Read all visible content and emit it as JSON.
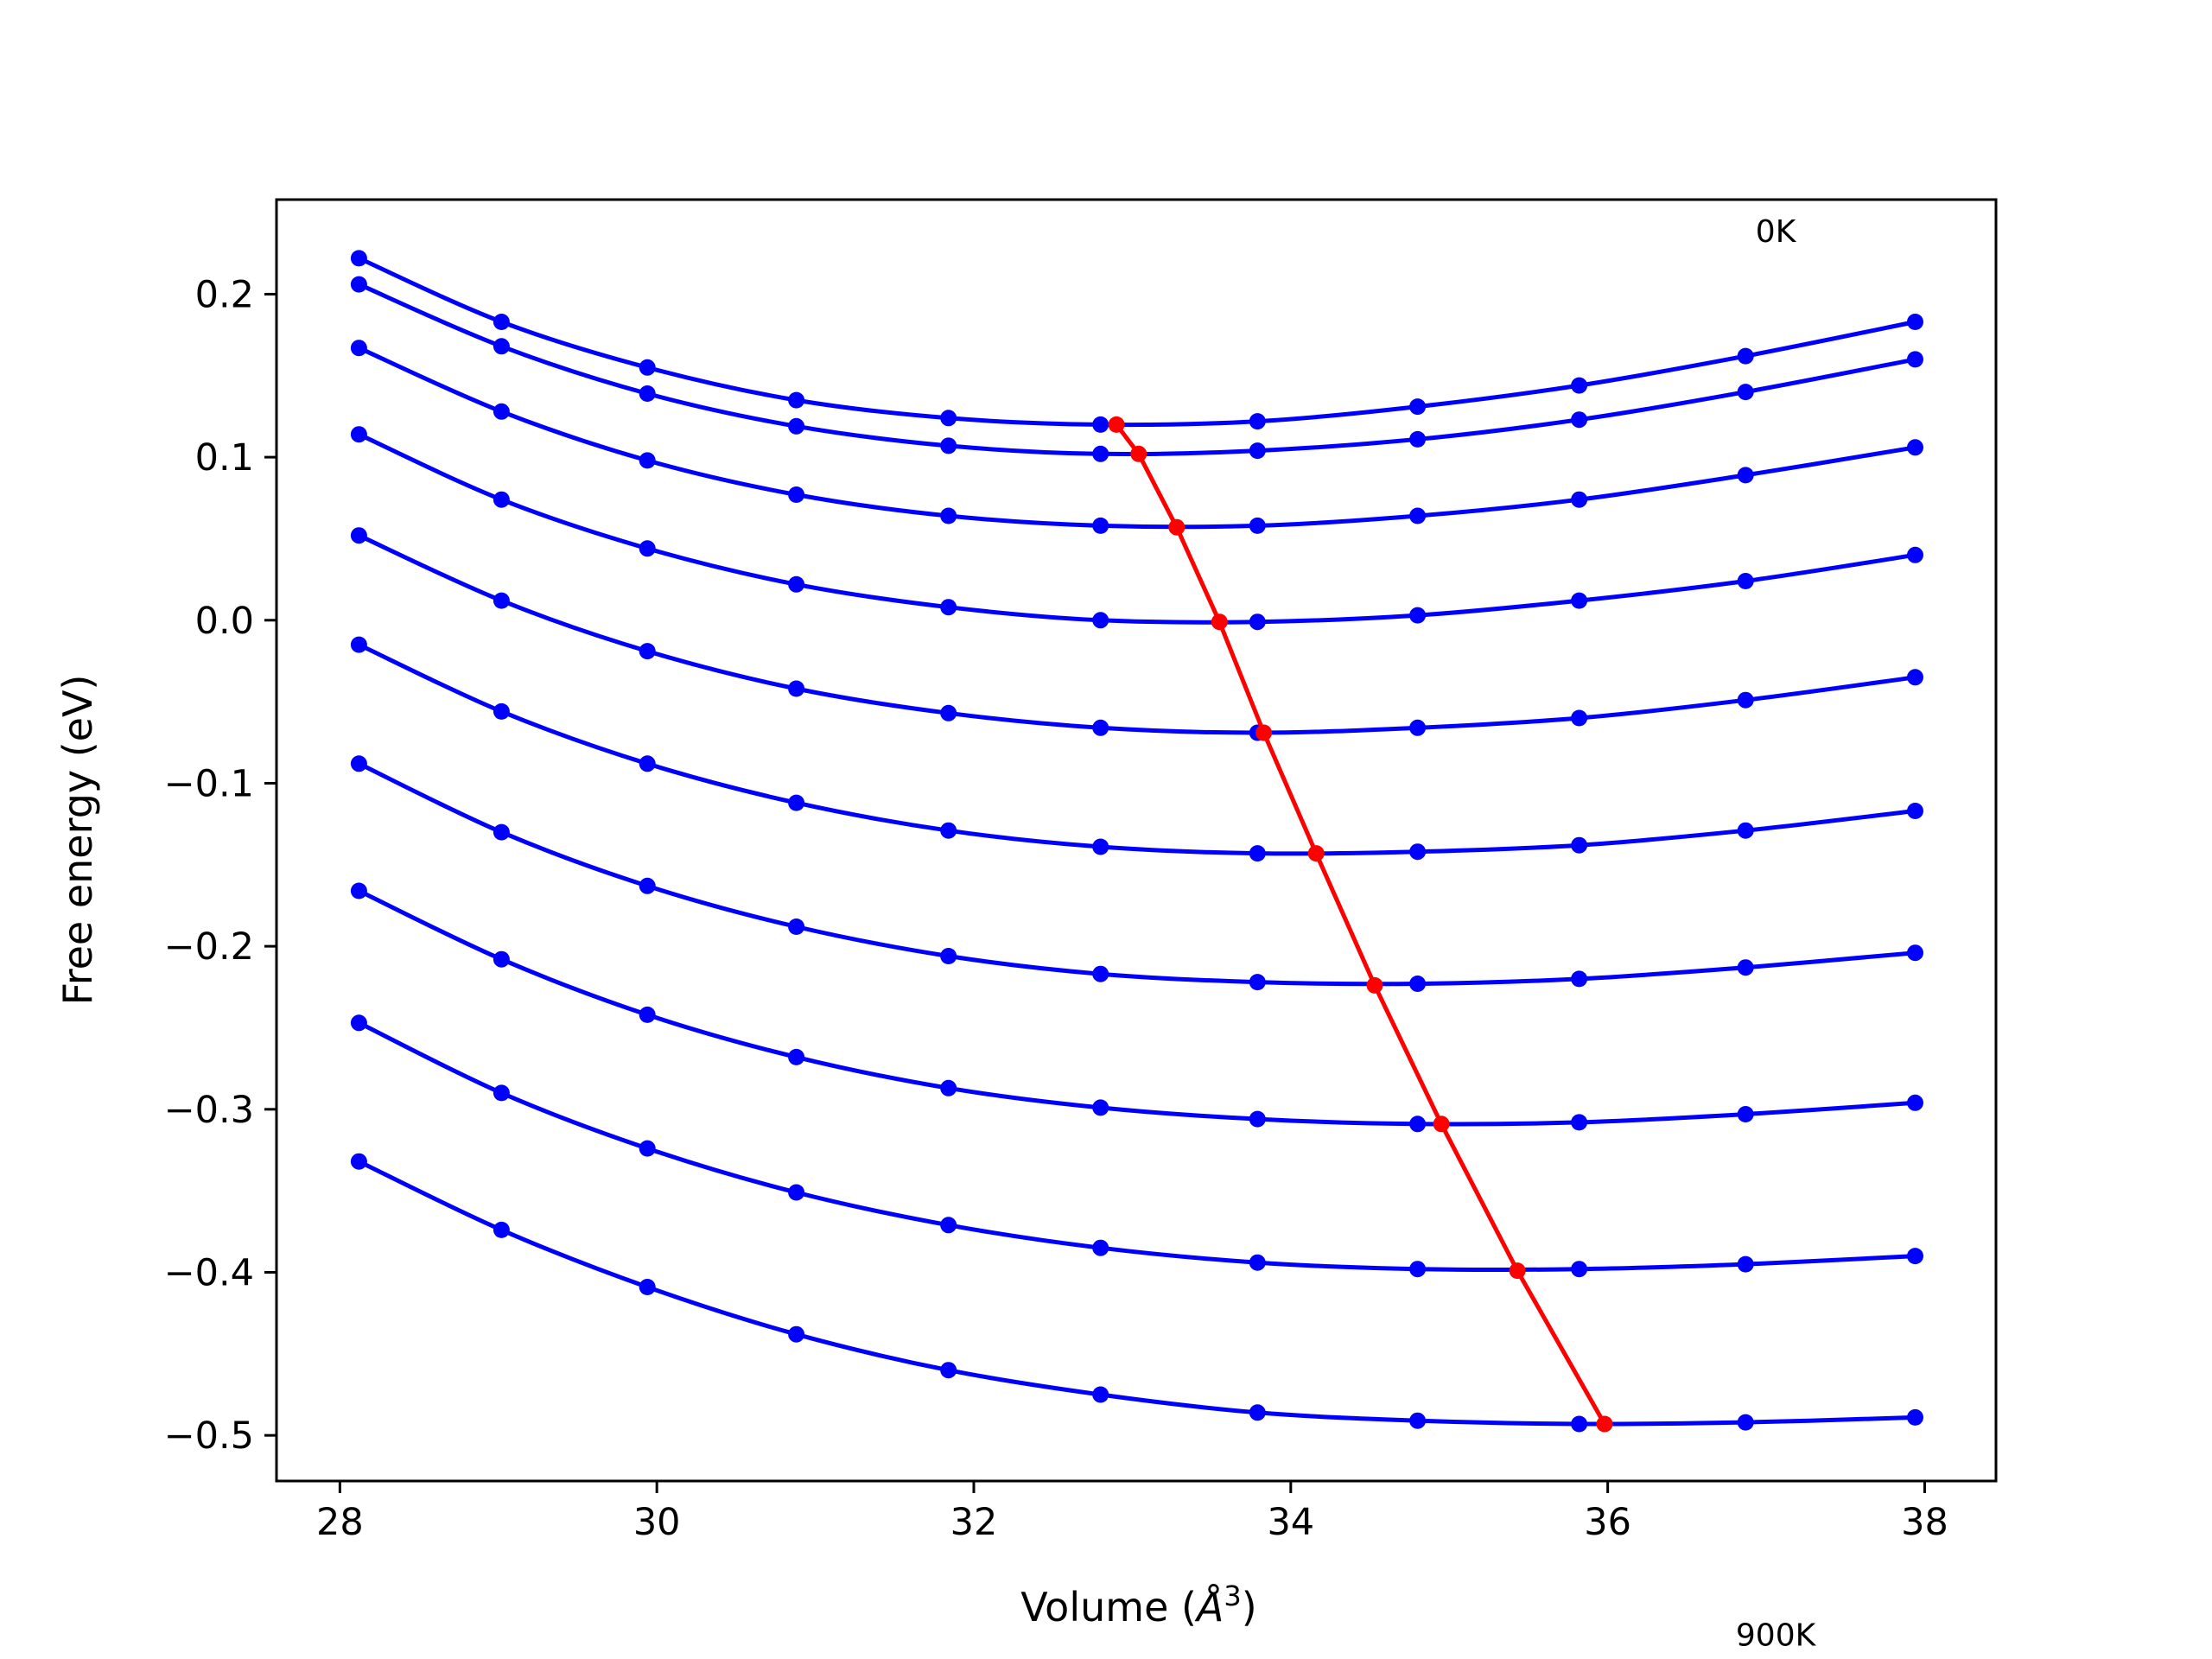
{
  "chart_data": {
    "type": "line",
    "title": "",
    "xlabel": "Volume ($\\AA^3$)",
    "xlabel_display": {
      "main": "Volume (",
      "symbol": "Å",
      "sup": "3",
      "close": ")"
    },
    "ylabel": "Free energy (eV)",
    "xlim": [
      27.6,
      38.45
    ],
    "ylim": [
      -0.528,
      0.258
    ],
    "x_ticks": [
      28,
      30,
      32,
      34,
      36,
      38
    ],
    "x_tick_labels": [
      "28",
      "30",
      "32",
      "34",
      "36",
      "38"
    ],
    "y_ticks": [
      0.2,
      0.1,
      0.0,
      -0.1,
      -0.2,
      -0.3,
      -0.4,
      -0.5
    ],
    "y_tick_labels": [
      "0.2",
      "0.1",
      "0.0",
      "−0.1",
      "−0.2",
      "−0.3",
      "−0.4",
      "−0.5"
    ],
    "grid": false,
    "legend": "none",
    "x": [
      28.12,
      29.02,
      29.94,
      30.88,
      31.84,
      32.8,
      33.79,
      34.8,
      35.82,
      36.87,
      37.94
    ],
    "series": [
      {
        "color": "#0000ff",
        "values": [
          0.222,
          0.183,
          0.155,
          0.135,
          0.124,
          0.12,
          0.122,
          0.131,
          0.144,
          0.162,
          0.183
        ]
      },
      {
        "color": "#0000ff",
        "values": [
          0.206,
          0.168,
          0.139,
          0.119,
          0.107,
          0.102,
          0.104,
          0.111,
          0.123,
          0.14,
          0.16
        ]
      },
      {
        "color": "#0000ff",
        "values": [
          0.167,
          0.128,
          0.098,
          0.077,
          0.064,
          0.058,
          0.058,
          0.064,
          0.074,
          0.089,
          0.106
        ]
      },
      {
        "color": "#0000ff",
        "values": [
          0.114,
          0.074,
          0.044,
          0.022,
          0.008,
          0.0,
          -0.001,
          0.003,
          0.012,
          0.024,
          0.04
        ]
      },
      {
        "color": "#0000ff",
        "values": [
          0.052,
          0.012,
          -0.019,
          -0.042,
          -0.057,
          -0.066,
          -0.069,
          -0.066,
          -0.06,
          -0.049,
          -0.035
        ]
      },
      {
        "color": "#0000ff",
        "values": [
          -0.015,
          -0.056,
          -0.088,
          -0.112,
          -0.129,
          -0.139,
          -0.143,
          -0.142,
          -0.138,
          -0.129,
          -0.117
        ]
      },
      {
        "color": "#0000ff",
        "values": [
          -0.088,
          -0.13,
          -0.163,
          -0.188,
          -0.206,
          -0.217,
          -0.222,
          -0.223,
          -0.22,
          -0.213,
          -0.204
        ]
      },
      {
        "color": "#0000ff",
        "values": [
          -0.166,
          -0.208,
          -0.242,
          -0.268,
          -0.287,
          -0.299,
          -0.306,
          -0.309,
          -0.308,
          -0.303,
          -0.296
        ]
      },
      {
        "color": "#0000ff",
        "values": [
          -0.247,
          -0.29,
          -0.324,
          -0.351,
          -0.371,
          -0.385,
          -0.394,
          -0.398,
          -0.398,
          -0.395,
          -0.39
        ]
      },
      {
        "color": "#0000ff",
        "values": [
          -0.332,
          -0.374,
          -0.409,
          -0.438,
          -0.46,
          -0.475,
          -0.486,
          -0.491,
          -0.493,
          -0.492,
          -0.489
        ]
      }
    ],
    "minimum_curve": {
      "color": "#ff0000",
      "x": [
        32.9,
        33.04,
        33.28,
        33.55,
        33.83,
        34.16,
        34.53,
        34.95,
        35.43,
        35.98
      ],
      "y": [
        0.12,
        0.102,
        0.057,
        -0.001,
        -0.069,
        -0.143,
        -0.224,
        -0.309,
        -0.399,
        -0.493
      ]
    },
    "annotations": [
      {
        "text": "0K",
        "x": 37.06,
        "y": 0.232
      },
      {
        "text": "900K",
        "x": 37.06,
        "y": -0.629
      }
    ]
  }
}
